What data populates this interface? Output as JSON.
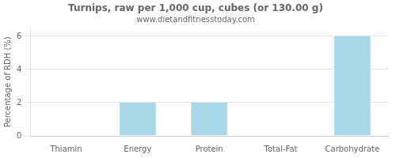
{
  "chart_data": {
    "type": "bar",
    "title": "Turnips, raw per 1,000 cup, cubes (or 130.00 g)",
    "subtitle": "www.dietandfitnesstoday.com",
    "categories": [
      "Thiamin",
      "Energy",
      "Protein",
      "Total-Fat",
      "Carbohydrate"
    ],
    "values": [
      0,
      2,
      2,
      0,
      6
    ],
    "color": "#a8d8e8",
    "ylabel": "Percentage of RDH (%)",
    "ylim": [
      0,
      6.5
    ],
    "yticks": [
      0,
      2,
      4,
      6
    ],
    "grid": true
  }
}
